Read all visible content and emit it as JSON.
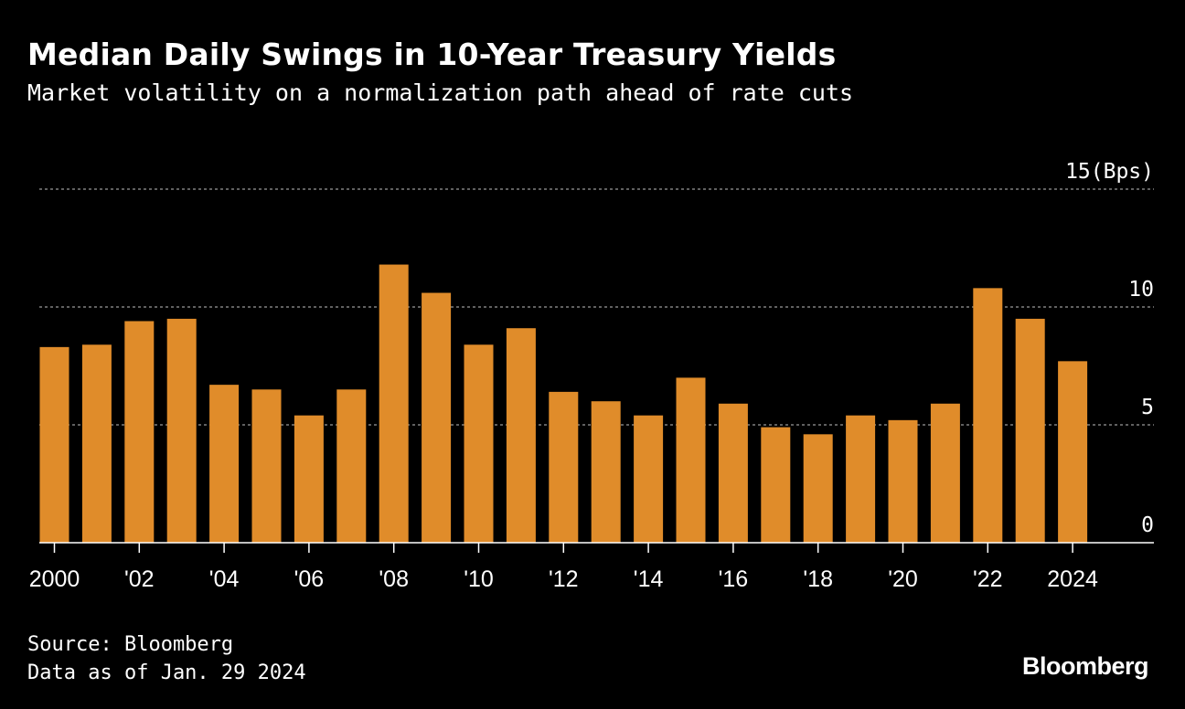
{
  "header": {
    "title": "Median Daily Swings in 10-Year Treasury Yields",
    "subtitle": "Market volatility on a normalization path ahead of rate cuts"
  },
  "footer": {
    "source": "Source: Bloomberg",
    "as_of": "Data as of Jan. 29 2024",
    "logo": "Bloomberg"
  },
  "colors": {
    "background": "#000000",
    "bar": "#E08C2A",
    "grid": "#9a9a9a",
    "text": "#ffffff"
  },
  "chart_data": {
    "type": "bar",
    "categories": [
      "2000",
      "2001",
      "2002",
      "2003",
      "2004",
      "2005",
      "2006",
      "2007",
      "2008",
      "2009",
      "2010",
      "2011",
      "2012",
      "2013",
      "2014",
      "2015",
      "2016",
      "2017",
      "2018",
      "2019",
      "2020",
      "2021",
      "2022",
      "2023",
      "2024"
    ],
    "values": [
      8.3,
      8.4,
      9.4,
      9.5,
      6.7,
      6.5,
      5.4,
      6.5,
      11.8,
      10.6,
      8.4,
      9.1,
      6.4,
      6.0,
      5.4,
      7.0,
      5.9,
      4.9,
      4.6,
      5.4,
      5.2,
      5.9,
      10.8,
      9.5,
      7.7
    ],
    "x_tick_labels": [
      {
        "at": "2000",
        "label": "2000"
      },
      {
        "at": "2002",
        "label": "'02"
      },
      {
        "at": "2004",
        "label": "'04"
      },
      {
        "at": "2006",
        "label": "'06"
      },
      {
        "at": "2008",
        "label": "'08"
      },
      {
        "at": "2010",
        "label": "'10"
      },
      {
        "at": "2012",
        "label": "'12"
      },
      {
        "at": "2014",
        "label": "'14"
      },
      {
        "at": "2016",
        "label": "'16"
      },
      {
        "at": "2018",
        "label": "'18"
      },
      {
        "at": "2020",
        "label": "'20"
      },
      {
        "at": "2022",
        "label": "'22"
      },
      {
        "at": "2024",
        "label": "2024"
      }
    ],
    "y_ticks": [
      {
        "value": 0,
        "label": "0"
      },
      {
        "value": 5,
        "label": "5"
      },
      {
        "value": 10,
        "label": "10"
      },
      {
        "value": 15,
        "label": "15(Bps)"
      }
    ],
    "ylim": [
      0,
      15
    ],
    "grid": true,
    "title": "Median Daily Swings in 10-Year Treasury Yields",
    "subtitle": "Market volatility on a normalization path ahead of rate cuts"
  }
}
